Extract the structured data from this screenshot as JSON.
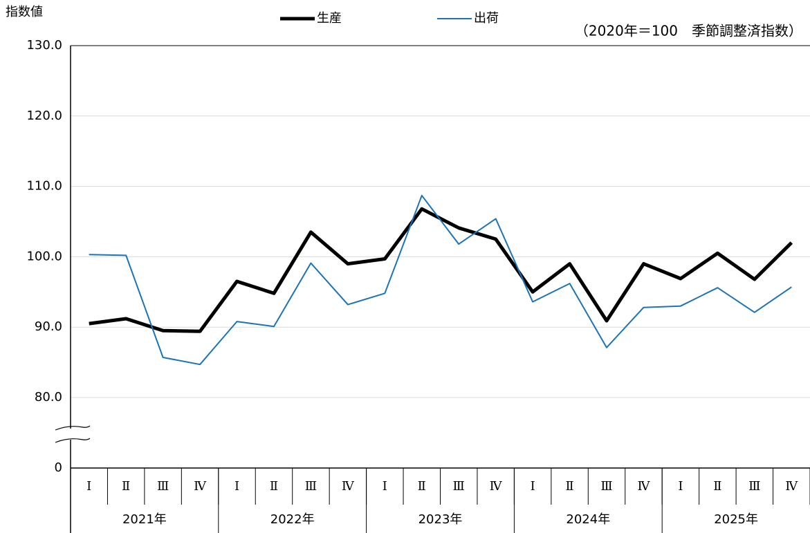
{
  "chart_data": {
    "type": "line",
    "y_label": "指数値",
    "note": "（2020年＝100　季節調整済指数）",
    "categories": [
      "Ⅰ",
      "Ⅱ",
      "Ⅲ",
      "Ⅳ",
      "Ⅰ",
      "Ⅱ",
      "Ⅲ",
      "Ⅳ",
      "Ⅰ",
      "Ⅱ",
      "Ⅲ",
      "Ⅳ",
      "Ⅰ",
      "Ⅱ",
      "Ⅲ",
      "Ⅳ",
      "Ⅰ",
      "Ⅱ",
      "Ⅲ",
      "Ⅳ"
    ],
    "x_groups": [
      "2021年",
      "2022年",
      "2023年",
      "2024年",
      "2025年"
    ],
    "series": [
      {
        "name": "生産",
        "color": "#000000",
        "values": [
          90.5,
          91.2,
          89.5,
          89.4,
          96.5,
          94.8,
          103.5,
          99.0,
          99.7,
          106.8,
          104.1,
          102.5,
          95.0,
          99.0,
          90.9,
          99.0,
          96.9,
          100.5,
          96.8,
          102.0
        ]
      },
      {
        "name": "出荷",
        "color": "#1a73b8",
        "values": [
          100.3,
          100.2,
          85.7,
          84.7,
          90.8,
          90.1,
          99.1,
          93.2,
          94.8,
          108.7,
          101.8,
          105.4,
          93.6,
          96.2,
          87.1,
          92.8,
          93.0,
          95.6,
          92.1,
          95.7
        ]
      }
    ],
    "ylim": [
      0,
      130
    ],
    "yticks": [
      0,
      {
        "value": 80,
        "label": "80.0"
      },
      {
        "value": 90,
        "label": "90.0"
      },
      {
        "value": 100,
        "label": "100.0"
      },
      {
        "value": 110,
        "label": "110.0"
      },
      {
        "value": 120,
        "label": "120.0"
      },
      {
        "value": 130,
        "label": "130.0"
      }
    ],
    "axis_break": true,
    "grid": true
  }
}
